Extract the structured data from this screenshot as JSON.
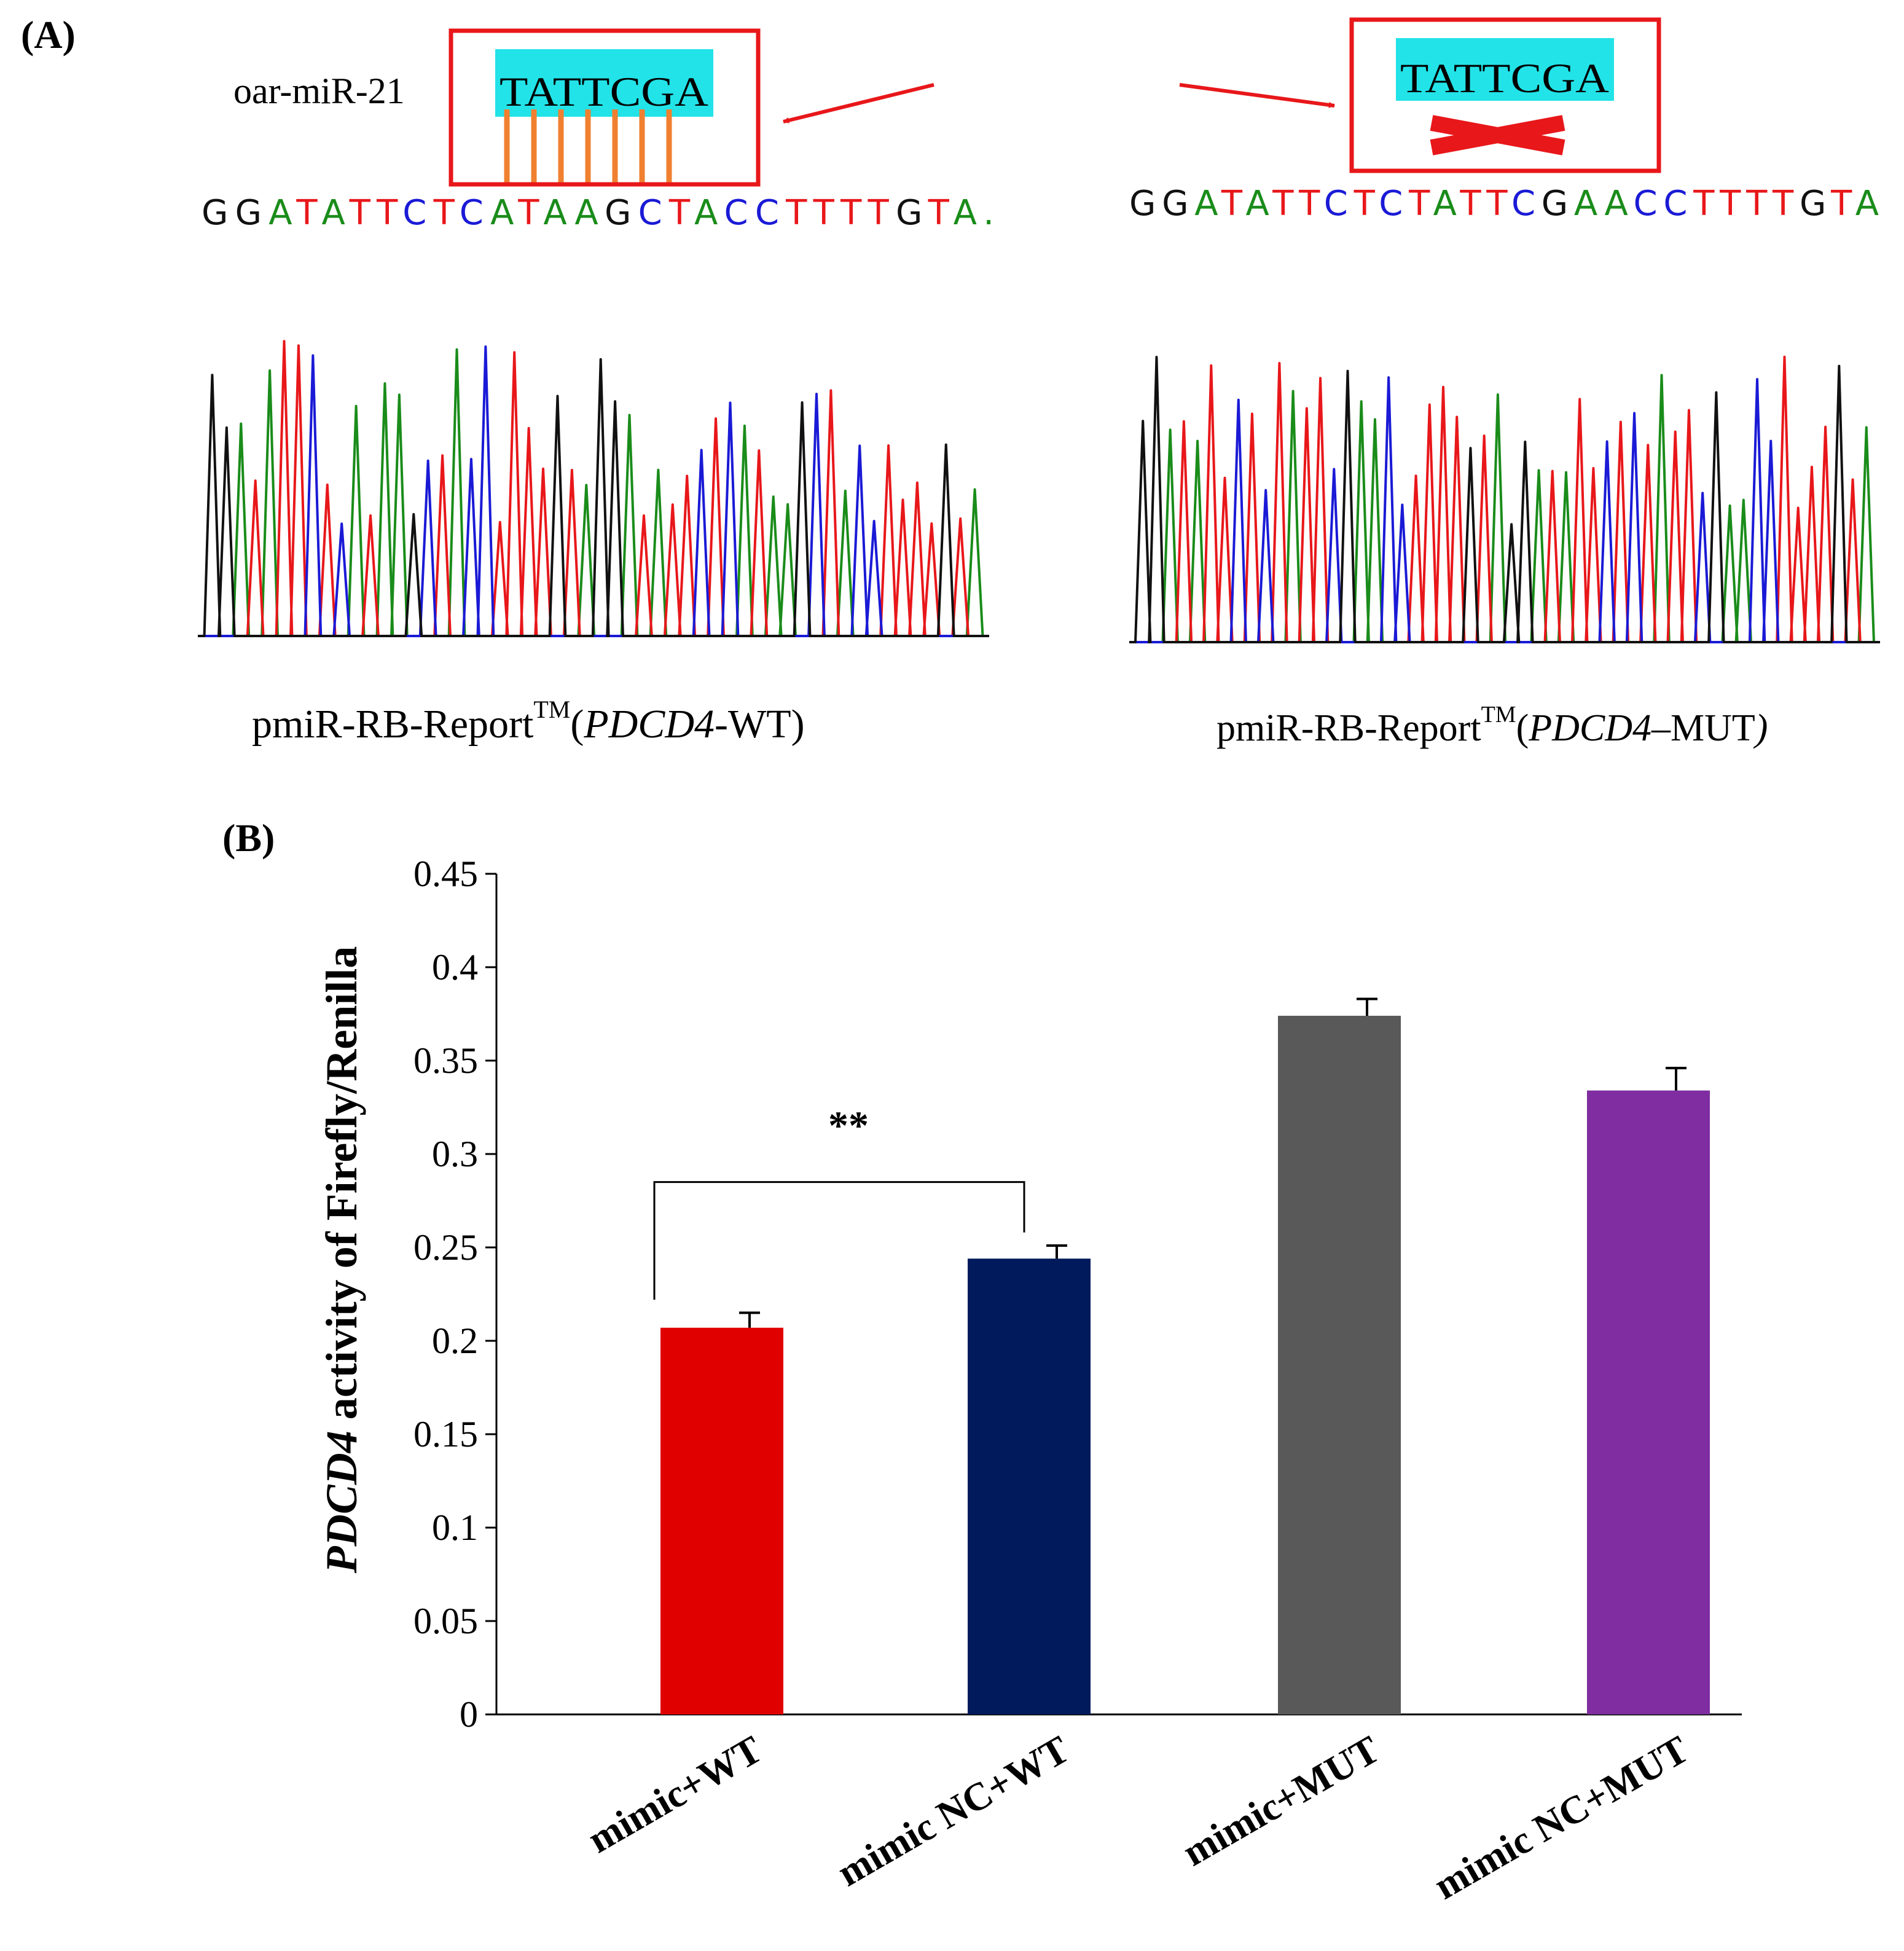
{
  "panel_a": {
    "label": "(A)",
    "mirna_label": "oar-miR-21",
    "wt": {
      "seed": "TATTCGA",
      "sequence": "GGATATTCTCATAAGCTACCTTTTGTA.",
      "caption_main": "pmiR-RB-Report",
      "caption_sup": "TM",
      "caption_open": "(",
      "caption_gene": "PDCD4",
      "caption_suffix": "-WT)"
    },
    "mut": {
      "seed": "TATTCGA",
      "sequence": "GGATATTCTCTATTCGAACCTTTTGTA",
      "caption_main": "pmiR-RB-Report",
      "caption_sup": "TM",
      "caption_open": "(",
      "caption_gene": "PDCD4",
      "caption_suffix": "–MUT",
      "caption_close": ")"
    },
    "base_colors": {
      "A": "#1a8c1a",
      "T": "#e8171a",
      "C": "#1a1ad6",
      "G": "#111111"
    },
    "highlight_color": "#22e3e8",
    "box_color": "#e8171a",
    "pair_line_color": "#f08030"
  },
  "panel_b": {
    "label": "(B)",
    "significance": "**"
  },
  "chart_data": {
    "type": "bar",
    "title": "",
    "xlabel": "",
    "ylabel_italic": "PDCD4",
    "ylabel_rest": " activity of Firefly/Renilla",
    "ylim": [
      0,
      0.45
    ],
    "yticks": [
      0,
      0.05,
      0.1,
      0.15,
      0.2,
      0.25,
      0.3,
      0.35,
      0.4,
      0.45
    ],
    "ytick_labels": [
      "0",
      "0.05",
      "0.1",
      "0.15",
      "0.2",
      "0.25",
      "0.3",
      "0.35",
      "0.4",
      "0.45"
    ],
    "categories": [
      "mimic+WT",
      "mimic NC+WT",
      "mimic+MUT",
      "mimic NC+MUT"
    ],
    "values": [
      0.207,
      0.244,
      0.374,
      0.334
    ],
    "errors": [
      0.008,
      0.007,
      0.009,
      0.012
    ],
    "colors": [
      "#e00000",
      "#001a5c",
      "#595959",
      "#7f2da0"
    ],
    "comparison": {
      "from": 0,
      "to": 1,
      "label": "**"
    }
  }
}
